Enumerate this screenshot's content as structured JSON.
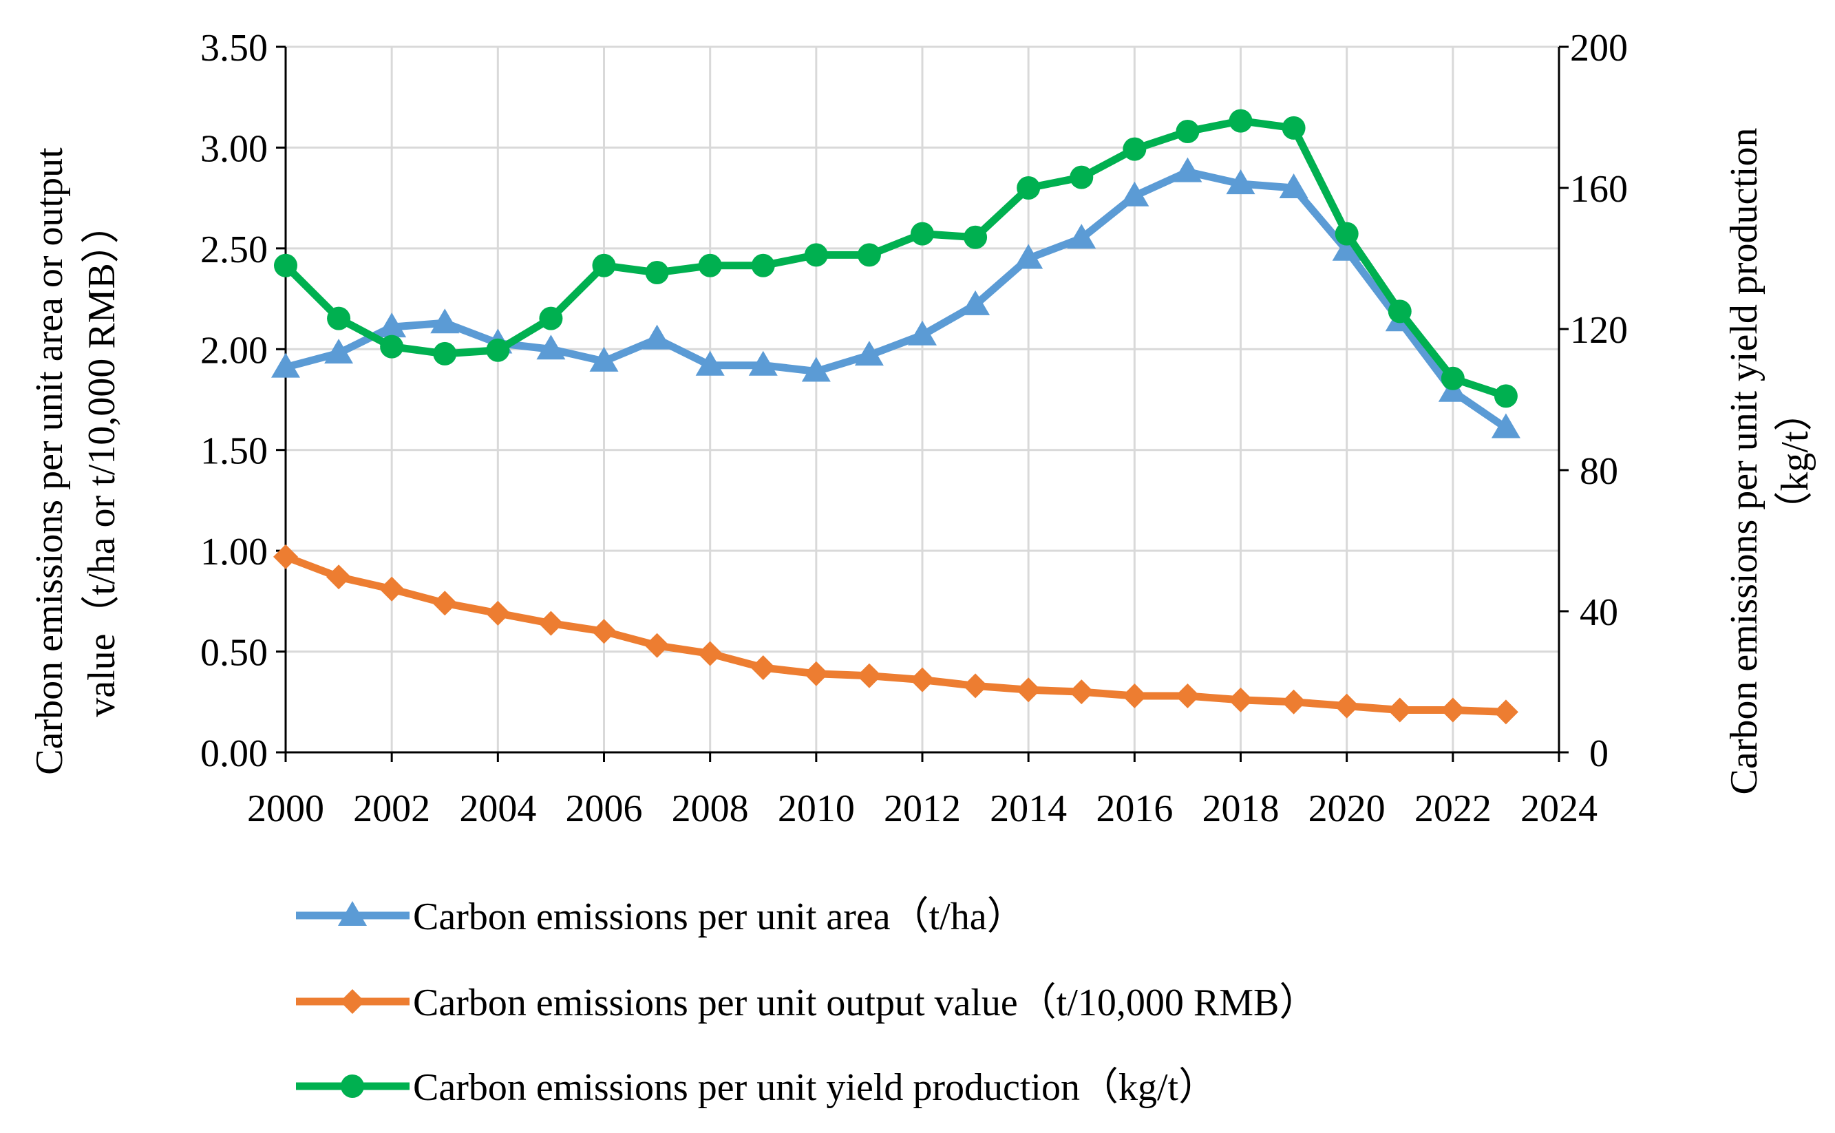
{
  "chart_data": {
    "type": "line",
    "title": "",
    "x_ticks": [
      2000,
      2002,
      2004,
      2006,
      2008,
      2010,
      2012,
      2014,
      2016,
      2018,
      2020,
      2022,
      2024
    ],
    "xlim": [
      2000,
      2024
    ],
    "x_tick_labels": [
      "2000",
      "2002",
      "2004",
      "2006",
      "2008",
      "2010",
      "2012",
      "2014",
      "2016",
      "2018",
      "2020",
      "2022",
      "2024"
    ],
    "y_left": {
      "label_lines": [
        "Carbon emissions  per unit  area  or  output",
        "value（t/ha  or  t/10,000  RMB））"
      ],
      "ylim": [
        0,
        3.5
      ],
      "tick_values": [
        0,
        0.5,
        1.0,
        1.5,
        2.0,
        2.5,
        3.0,
        3.5
      ],
      "tick_labels": [
        "0.00",
        "0.50",
        "1.00",
        "1.50",
        "2.00",
        "2.50",
        "3.00",
        "3.50"
      ]
    },
    "y_right": {
      "label_lines": [
        "Carbon emissions  per unit  yield  production",
        "（kg/t）"
      ],
      "ylim": [
        0,
        200
      ],
      "tick_values": [
        0,
        40,
        80,
        120,
        160,
        200
      ],
      "tick_labels": [
        "0",
        "40",
        "80",
        "120",
        "160",
        "200"
      ]
    },
    "series": [
      {
        "name": "Carbon emissions  per unit  area（t/ha）",
        "axis": "left",
        "color": "#5B9BD5",
        "marker": "triangle",
        "x": [
          2000,
          2001,
          2002,
          2003,
          2004,
          2005,
          2006,
          2007,
          2008,
          2009,
          2010,
          2011,
          2012,
          2013,
          2014,
          2015,
          2016,
          2017,
          2018,
          2019,
          2020,
          2021,
          2022,
          2023
        ],
        "values": [
          1.91,
          1.98,
          2.11,
          2.13,
          2.03,
          2.0,
          1.94,
          2.05,
          1.92,
          1.92,
          1.89,
          1.97,
          2.07,
          2.22,
          2.45,
          2.55,
          2.76,
          2.88,
          2.82,
          2.8,
          2.49,
          2.14,
          1.79,
          1.61
        ]
      },
      {
        "name": "Carbon emissions  per unit  output  value（t/10,000  RMB）",
        "axis": "left",
        "color": "#ED7D31",
        "marker": "diamond",
        "x": [
          2000,
          2001,
          2002,
          2003,
          2004,
          2005,
          2006,
          2007,
          2008,
          2009,
          2010,
          2011,
          2012,
          2013,
          2014,
          2015,
          2016,
          2017,
          2018,
          2019,
          2020,
          2021,
          2022,
          2023
        ],
        "values": [
          0.97,
          0.87,
          0.81,
          0.74,
          0.69,
          0.64,
          0.6,
          0.53,
          0.49,
          0.42,
          0.39,
          0.38,
          0.36,
          0.33,
          0.31,
          0.3,
          0.28,
          0.28,
          0.26,
          0.25,
          0.23,
          0.21,
          0.21,
          0.2
        ]
      },
      {
        "name": "Carbon emissions  per unit  yield  production（kg/t）",
        "axis": "right",
        "color": "#00B050",
        "marker": "circle",
        "x": [
          2000,
          2001,
          2002,
          2003,
          2004,
          2005,
          2006,
          2007,
          2008,
          2009,
          2010,
          2011,
          2012,
          2013,
          2014,
          2015,
          2016,
          2017,
          2018,
          2019,
          2020,
          2021,
          2022,
          2023
        ],
        "values": [
          138,
          123,
          115,
          113,
          114,
          123,
          138,
          136,
          138,
          138,
          141,
          141,
          147,
          146,
          160,
          163,
          171,
          176,
          179,
          177,
          147,
          125,
          106,
          101
        ]
      }
    ],
    "legend_position": "bottom",
    "grid": true
  }
}
